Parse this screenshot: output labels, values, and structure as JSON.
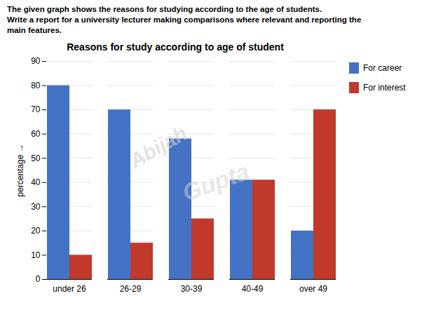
{
  "chart_data": {
    "type": "bar",
    "title": "Reasons  for study according to age of student",
    "subtitle": [
      "The given graph shows the reasons for studying according to the age of students.",
      "Write a report for a university lecturer making comparisons where relevant and reporting the",
      "main features."
    ],
    "annotations": [
      "Abijah",
      "Gupta"
    ],
    "categories": [
      "under 26",
      "26-29",
      "30-39",
      "40-49",
      "over 49"
    ],
    "series": [
      {
        "name": "For career",
        "color": "#4472C4",
        "values": [
          80,
          70,
          58,
          41,
          20
        ]
      },
      {
        "name": "For interest",
        "color": "#C0392B",
        "values": [
          10,
          15,
          25,
          41,
          70
        ]
      }
    ],
    "ylabel": "percentage",
    "ylim": [
      0,
      90
    ],
    "yticks": [
      0,
      10,
      20,
      30,
      40,
      50,
      60,
      70,
      80,
      90
    ],
    "grid": true,
    "legend": "right"
  }
}
